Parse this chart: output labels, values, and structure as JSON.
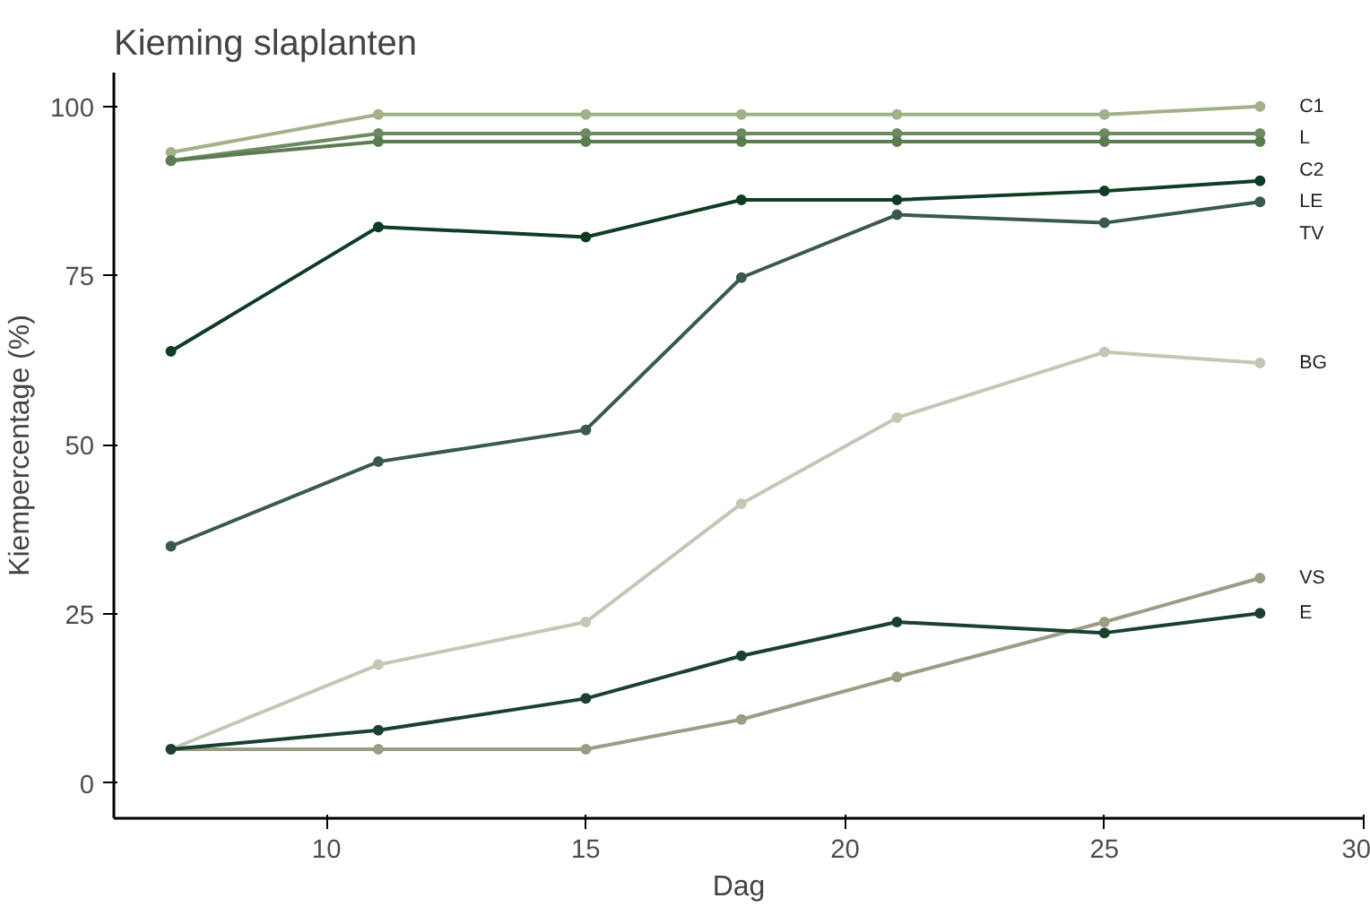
{
  "chart_data": {
    "type": "line",
    "title": "Kieming slaplanten",
    "xlabel": "Dag",
    "ylabel": "Kiempercentage (%)",
    "x": [
      7,
      11,
      15,
      18,
      21,
      25,
      28
    ],
    "series": [
      {
        "name": "C1",
        "color": "#a3b18a",
        "values": [
          93.2,
          98.8,
          98.8,
          98.8,
          98.8,
          98.8,
          100
        ]
      },
      {
        "name": "L",
        "color": "#6e8a62",
        "values": [
          92,
          96,
          96,
          96,
          96,
          96,
          96
        ]
      },
      {
        "name": "C2",
        "color": "#5b7c52",
        "values": [
          92,
          94.8,
          94.8,
          94.8,
          94.8,
          94.8,
          94.8
        ]
      },
      {
        "name": "LE",
        "color": "#0f3d24",
        "values": [
          63.8,
          82.2,
          80.7,
          86.2,
          86.2,
          87.5,
          89
        ]
      },
      {
        "name": "TV",
        "color": "#3b5a4b",
        "values": [
          35,
          47.5,
          52.2,
          74.7,
          84,
          82.8,
          85.9
        ]
      },
      {
        "name": "BG",
        "color": "#c4c7b4",
        "values": [
          5,
          17.5,
          23.8,
          41.3,
          54,
          63.7,
          62.1
        ]
      },
      {
        "name": "VS",
        "color": "#9a9e84",
        "values": [
          5,
          5,
          5,
          9.4,
          15.7,
          23.8,
          30.3
        ]
      },
      {
        "name": "E",
        "color": "#1c4030",
        "values": [
          5,
          7.8,
          12.5,
          18.8,
          23.8,
          22.2,
          25.1
        ]
      }
    ],
    "xlim": [
      5.9,
      30
    ],
    "ylim": [
      -5.2,
      105
    ],
    "xticks": [
      10,
      15,
      20,
      25,
      30
    ],
    "yticks": [
      0,
      25,
      50,
      75,
      100
    ],
    "grid": false,
    "marker": "circle",
    "line_style": "solid"
  }
}
